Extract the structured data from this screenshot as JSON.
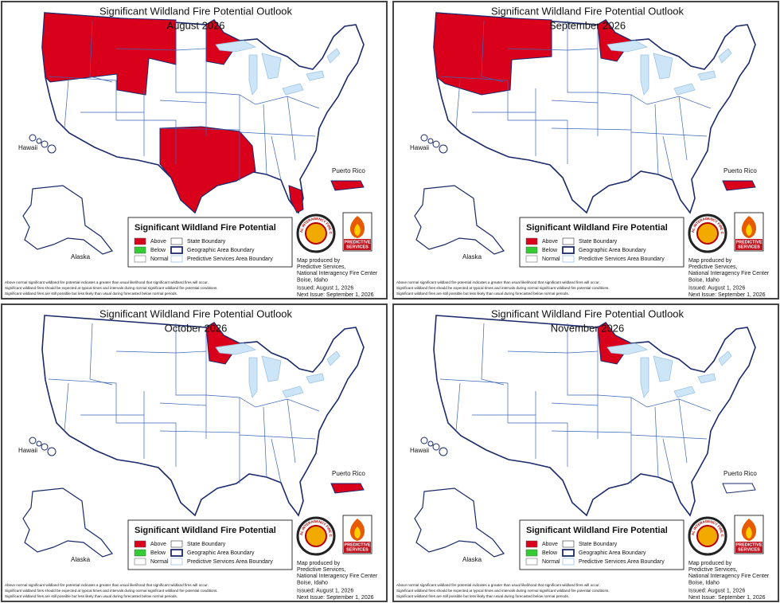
{
  "panels": [
    {
      "title": "Significant Wildland Fire Potential Outlook",
      "subtitle": "August 2026",
      "labels": {
        "hawaii": "Hawaii",
        "alaska": "Alaska",
        "puerto_rico": "Puerto Rico"
      },
      "legend": {
        "title": "Significant Wildland Fire Potential",
        "potential": [
          "Above",
          "Below",
          "Normal"
        ],
        "boundaries": [
          "State Boundary",
          "Geographic Area Boundary",
          "Predictive Services Area Boundary"
        ]
      },
      "logo": {
        "seal": "NATIONAL INTERAGENCY FIRE CENTER",
        "brand": [
          "PREDICTIVE",
          "SERVICES"
        ]
      },
      "credits": [
        "Map produced by",
        "Predictive Services,",
        "National Interagency Fire Center",
        "Boise, Idaho",
        "Issued: August 1, 2026",
        "Next Issue: September 1, 2026"
      ],
      "footnotes": [
        "Above normal significant wildland fire potential indicates a greater than usual likelihood that significant wildland fires will occur.",
        "Significant wildland fires should be expected at typical times and intervals during normal significant wildland fire potential conditions.",
        "Significant wildland fires are still possible but less likely than usual during forecasted below normal periods."
      ]
    },
    {
      "title": "Significant Wildland Fire Potential Outlook",
      "subtitle": "September 2026",
      "labels": {
        "hawaii": "Hawaii",
        "alaska": "Alaska",
        "puerto_rico": "Puerto Rico"
      },
      "legend": {
        "title": "Significant Wildland Fire Potential",
        "potential": [
          "Above",
          "Below",
          "Normal"
        ],
        "boundaries": [
          "State Boundary",
          "Geographic Area Boundary",
          "Predictive Services Area Boundary"
        ]
      },
      "logo": {
        "seal": "NATIONAL INTERAGENCY FIRE CENTER",
        "brand": [
          "PREDICTIVE",
          "SERVICES"
        ]
      },
      "credits": [
        "Map produced by",
        "Predictive Services,",
        "National Interagency Fire Center",
        "Boise, Idaho",
        "Issued: August 1, 2026",
        "Next Issue: September 1, 2026"
      ],
      "footnotes": [
        "Above normal significant wildland fire potential indicates a greater than usual likelihood that significant wildland fires will occur.",
        "Significant wildland fires should be expected at typical times and intervals during normal significant wildland fire potential conditions.",
        "Significant wildland fires are still possible but less likely than usual during forecasted below normal periods."
      ]
    },
    {
      "title": "Significant Wildland Fire Potential Outlook",
      "subtitle": "October 2026",
      "labels": {
        "hawaii": "Hawaii",
        "alaska": "Alaska",
        "puerto_rico": "Puerto Rico"
      },
      "legend": {
        "title": "Significant Wildland Fire Potential",
        "potential": [
          "Above",
          "Below",
          "Normal"
        ],
        "boundaries": [
          "State Boundary",
          "Geographic Area Boundary",
          "Predictive Services Area Boundary"
        ]
      },
      "logo": {
        "seal": "NATIONAL INTERAGENCY FIRE CENTER",
        "brand": [
          "PREDICTIVE",
          "SERVICES"
        ]
      },
      "credits": [
        "Map produced by",
        "Predictive Services,",
        "National Interagency Fire Center",
        "Boise, Idaho",
        "Issued: August 1, 2026",
        "Next Issue: September 1, 2026"
      ],
      "footnotes": [
        "Above normal significant wildland fire potential indicates a greater than usual likelihood that significant wildland fires will occur.",
        "Significant wildland fires should be expected at typical times and intervals during normal significant wildland fire potential conditions.",
        "Significant wildland fires are still possible but less likely than usual during forecasted below normal periods."
      ]
    },
    {
      "title": "Significant Wildland Fire Potential Outlook",
      "subtitle": "November 2026",
      "labels": {
        "hawaii": "Hawaii",
        "alaska": "Alaska",
        "puerto_rico": "Puerto Rico"
      },
      "legend": {
        "title": "Significant Wildland Fire Potential",
        "potential": [
          "Above",
          "Below",
          "Normal"
        ],
        "boundaries": [
          "State Boundary",
          "Geographic Area Boundary",
          "Predictive Services Area Boundary"
        ]
      },
      "logo": {
        "seal": "NATIONAL INTERAGENCY FIRE CENTER",
        "brand": [
          "PREDICTIVE",
          "SERVICES"
        ]
      },
      "credits": [
        "Map produced by",
        "Predictive Services,",
        "National Interagency Fire Center",
        "Boise, Idaho",
        "Issued: August 1, 2026",
        "Next Issue: September 1, 2026"
      ],
      "footnotes": [
        "Above normal significant wildland fire potential indicates a greater than usual likelihood that significant wildland fires will occur.",
        "Significant wildland fires should be expected at typical times and intervals during normal significant wildland fire potential conditions.",
        "Significant wildland fires are still possible but less likely than usual during forecasted below normal periods."
      ]
    }
  ]
}
